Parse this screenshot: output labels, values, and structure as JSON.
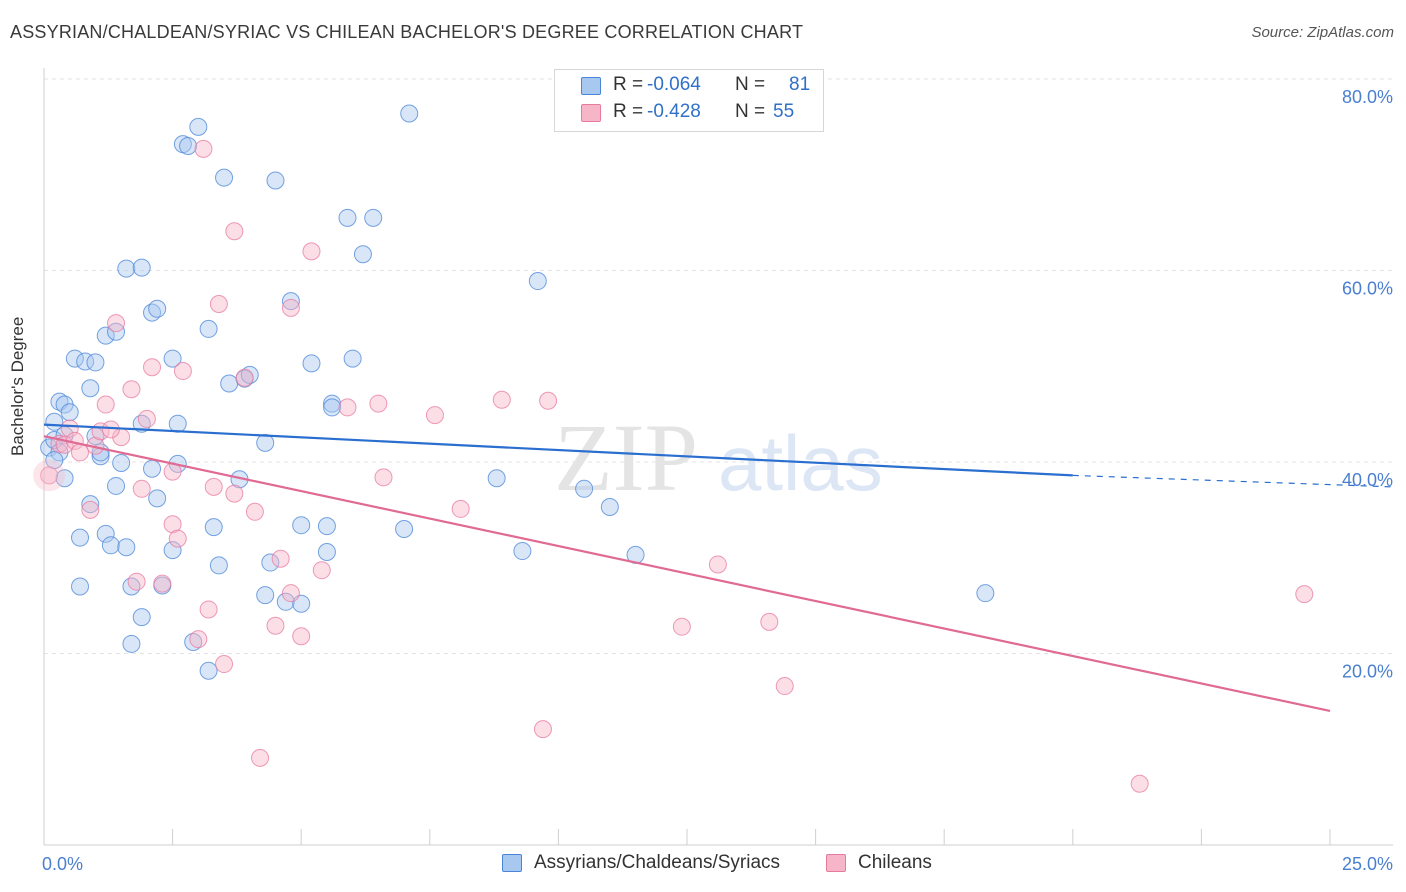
{
  "title": "ASSYRIAN/CHALDEAN/SYRIAC VS CHILEAN BACHELOR'S DEGREE CORRELATION CHART",
  "source": "Source: ZipAtlas.com",
  "watermark": {
    "zip": "ZIP",
    "atlas": "atlas"
  },
  "stats": {
    "rows": [
      {
        "r_label": "R =",
        "r_value": "-0.064",
        "n_label": "N =",
        "n_value": "81",
        "color": "#a9c8f0"
      },
      {
        "r_label": "R =",
        "r_value": "-0.428",
        "n_label": "N =",
        "n_value": "55",
        "color": "#f7b6c8"
      }
    ]
  },
  "legend": {
    "items": [
      {
        "label": "Assyrians/Chaldeans/Syriacs",
        "color": "#a9c8f0"
      },
      {
        "label": "Chileans",
        "color": "#f7b6c8"
      }
    ]
  },
  "chart_data": {
    "type": "scatter",
    "title": "ASSYRIAN/CHALDEAN/SYRIAC VS CHILEAN BACHELOR'S DEGREE CORRELATION CHART",
    "xlabel": "",
    "ylabel": "Bachelor's Degree",
    "xlim": [
      0,
      25
    ],
    "ylim": [
      0,
      80
    ],
    "x_tick_labels": [
      "0.0%",
      "25.0%"
    ],
    "y_ticks": [
      20,
      40,
      60,
      80
    ],
    "y_tick_labels": [
      "20.0%",
      "40.0%",
      "60.0%",
      "80.0%"
    ],
    "grid": true,
    "series": [
      {
        "name": "Assyrians/Chaldeans/Syriacs",
        "color": "#4a86d8",
        "fill": "#a9c8f0",
        "trend": {
          "x": [
            0,
            20
          ],
          "y": [
            43.9,
            38.6
          ],
          "dashed_extension_to_x": 25,
          "dashed_end_y": 37.4,
          "color": "#2a6fcf"
        },
        "points": [
          [
            0.1,
            41.5
          ],
          [
            0.2,
            44.2
          ],
          [
            0.2,
            42.3
          ],
          [
            0.3,
            46.3
          ],
          [
            0.3,
            41.0
          ],
          [
            0.4,
            42.8
          ],
          [
            0.4,
            46.0
          ],
          [
            0.5,
            45.2
          ],
          [
            0.4,
            38.3
          ],
          [
            0.6,
            50.8
          ],
          [
            0.8,
            50.5
          ],
          [
            0.9,
            47.7
          ],
          [
            0.7,
            32.1
          ],
          [
            0.9,
            35.6
          ],
          [
            1.0,
            42.7
          ],
          [
            1.0,
            50.4
          ],
          [
            0.7,
            27.0
          ],
          [
            1.2,
            32.5
          ],
          [
            1.1,
            40.6
          ],
          [
            1.3,
            31.3
          ],
          [
            1.2,
            53.2
          ],
          [
            1.4,
            53.6
          ],
          [
            1.5,
            39.9
          ],
          [
            1.4,
            37.5
          ],
          [
            1.6,
            31.1
          ],
          [
            1.6,
            60.2
          ],
          [
            1.7,
            27.0
          ],
          [
            1.7,
            21.0
          ],
          [
            1.9,
            60.3
          ],
          [
            1.9,
            23.8
          ],
          [
            1.9,
            44.0
          ],
          [
            2.1,
            55.6
          ],
          [
            2.1,
            39.3
          ],
          [
            2.2,
            56.0
          ],
          [
            2.2,
            36.2
          ],
          [
            2.3,
            27.1
          ],
          [
            2.5,
            30.8
          ],
          [
            2.5,
            50.8
          ],
          [
            2.6,
            39.8
          ],
          [
            2.6,
            44.0
          ],
          [
            2.7,
            73.2
          ],
          [
            2.8,
            73.0
          ],
          [
            2.9,
            21.2
          ],
          [
            3.0,
            75.0
          ],
          [
            3.2,
            53.9
          ],
          [
            3.2,
            18.2
          ],
          [
            3.3,
            33.2
          ],
          [
            3.4,
            29.2
          ],
          [
            3.5,
            69.7
          ],
          [
            3.6,
            48.2
          ],
          [
            3.8,
            38.2
          ],
          [
            3.9,
            48.7
          ],
          [
            4.0,
            49.1
          ],
          [
            4.3,
            26.1
          ],
          [
            4.3,
            42.0
          ],
          [
            4.4,
            29.5
          ],
          [
            4.5,
            69.4
          ],
          [
            4.7,
            25.4
          ],
          [
            4.8,
            56.8
          ],
          [
            5.0,
            33.4
          ],
          [
            5.0,
            25.2
          ],
          [
            5.2,
            50.3
          ],
          [
            5.5,
            33.3
          ],
          [
            5.5,
            30.6
          ],
          [
            5.6,
            46.1
          ],
          [
            5.9,
            65.5
          ],
          [
            6.0,
            50.8
          ],
          [
            6.2,
            61.7
          ],
          [
            6.4,
            65.5
          ],
          [
            7.0,
            33.0
          ],
          [
            7.1,
            76.4
          ],
          [
            8.8,
            38.3
          ],
          [
            9.3,
            30.7
          ],
          [
            9.6,
            58.9
          ],
          [
            10.5,
            37.2
          ],
          [
            11.0,
            35.3
          ],
          [
            11.5,
            30.3
          ],
          [
            18.3,
            26.3
          ],
          [
            0.2,
            40.2
          ],
          [
            1.1,
            41.0
          ],
          [
            5.6,
            45.7
          ]
        ]
      },
      {
        "name": "Chileans",
        "color": "#e87aa0",
        "fill": "#f7b6c8",
        "trend": {
          "x": [
            0,
            25
          ],
          "y": [
            42.7,
            14.0
          ],
          "color": "#e06a94"
        },
        "points": [
          [
            0.1,
            38.6
          ],
          [
            0.3,
            41.9
          ],
          [
            0.4,
            41.8
          ],
          [
            0.5,
            43.5
          ],
          [
            0.6,
            42.2
          ],
          [
            0.7,
            41.0
          ],
          [
            0.9,
            35.0
          ],
          [
            1.0,
            41.7
          ],
          [
            1.1,
            43.2
          ],
          [
            1.2,
            46.0
          ],
          [
            1.4,
            54.5
          ],
          [
            1.5,
            42.6
          ],
          [
            1.7,
            47.6
          ],
          [
            1.8,
            27.5
          ],
          [
            1.9,
            37.2
          ],
          [
            2.0,
            44.5
          ],
          [
            2.1,
            49.9
          ],
          [
            2.3,
            27.3
          ],
          [
            2.5,
            33.5
          ],
          [
            2.5,
            39.0
          ],
          [
            2.6,
            32.0
          ],
          [
            2.7,
            49.5
          ],
          [
            3.0,
            21.5
          ],
          [
            3.1,
            72.7
          ],
          [
            3.2,
            24.6
          ],
          [
            3.3,
            37.4
          ],
          [
            3.4,
            56.5
          ],
          [
            3.5,
            18.9
          ],
          [
            3.7,
            36.7
          ],
          [
            3.7,
            64.1
          ],
          [
            3.9,
            48.8
          ],
          [
            4.1,
            34.8
          ],
          [
            4.2,
            9.1
          ],
          [
            4.5,
            22.9
          ],
          [
            4.6,
            29.9
          ],
          [
            4.8,
            56.1
          ],
          [
            4.8,
            26.3
          ],
          [
            5.0,
            21.8
          ],
          [
            5.2,
            62.0
          ],
          [
            5.4,
            28.7
          ],
          [
            5.9,
            45.7
          ],
          [
            6.5,
            46.1
          ],
          [
            6.6,
            38.4
          ],
          [
            7.6,
            44.9
          ],
          [
            8.1,
            35.1
          ],
          [
            8.9,
            46.5
          ],
          [
            9.7,
            12.1
          ],
          [
            9.8,
            46.4
          ],
          [
            12.4,
            22.8
          ],
          [
            13.1,
            29.3
          ],
          [
            14.1,
            23.3
          ],
          [
            14.4,
            16.6
          ],
          [
            21.3,
            6.4
          ],
          [
            24.5,
            26.2
          ],
          [
            1.3,
            43.4
          ]
        ]
      }
    ]
  }
}
